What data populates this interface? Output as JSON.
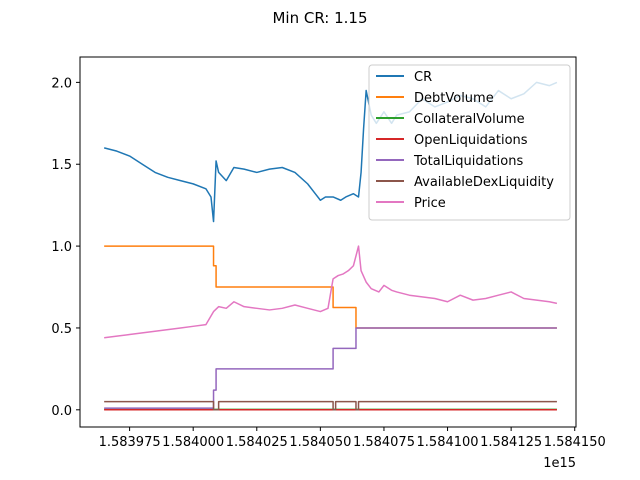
{
  "figure": {
    "background": "#ffffff"
  },
  "chart_data": {
    "type": "line",
    "title": "Min CR: 1.15",
    "xlabel": "",
    "ylabel": "",
    "x_offset_label": "1e15",
    "xlim": [
      1.5839555,
      1.5841505
    ],
    "ylim": [
      -0.105,
      2.155
    ],
    "x_ticks": [
      1.583975,
      1.584,
      1.584025,
      1.58405,
      1.584075,
      1.5841,
      1.584125,
      1.58415
    ],
    "x_tick_labels": [
      "1.583975",
      "1.584000",
      "1.584025",
      "1.584050",
      "1.584075",
      "1.584100",
      "1.584125",
      "1.584150"
    ],
    "y_ticks": [
      0.0,
      0.5,
      1.0,
      1.5,
      2.0
    ],
    "y_tick_labels": [
      "0.0",
      "0.5",
      "1.0",
      "1.5",
      "2.0"
    ],
    "grid": false,
    "legend_position": "upper right",
    "series": [
      {
        "name": "CR",
        "color": "#1f77b4",
        "x": [
          1.583965,
          1.58397,
          1.583975,
          1.58398,
          1.583985,
          1.58399,
          1.583995,
          1.584,
          1.584005,
          1.584007,
          1.584008,
          1.584009,
          1.58401,
          1.584013,
          1.584016,
          1.58402,
          1.584025,
          1.58403,
          1.584035,
          1.58404,
          1.584045,
          1.584048,
          1.58405,
          1.584052,
          1.584055,
          1.584058,
          1.58406,
          1.584063,
          1.584065,
          1.584066,
          1.584067,
          1.584068,
          1.58407,
          1.584072,
          1.584075,
          1.584078,
          1.58408,
          1.584085,
          1.58409,
          1.584095,
          1.5841,
          1.584105,
          1.58411,
          1.584115,
          1.58412,
          1.584125,
          1.58413,
          1.584135,
          1.58414,
          1.584143
        ],
        "y": [
          1.6,
          1.58,
          1.55,
          1.5,
          1.45,
          1.42,
          1.4,
          1.38,
          1.35,
          1.3,
          1.15,
          1.52,
          1.45,
          1.4,
          1.48,
          1.47,
          1.45,
          1.47,
          1.48,
          1.45,
          1.38,
          1.32,
          1.28,
          1.3,
          1.3,
          1.28,
          1.3,
          1.32,
          1.3,
          1.45,
          1.72,
          1.95,
          1.8,
          1.75,
          1.82,
          1.75,
          1.8,
          1.82,
          1.9,
          1.85,
          1.88,
          1.92,
          1.9,
          1.85,
          1.95,
          1.9,
          1.93,
          2.0,
          1.98,
          2.0
        ]
      },
      {
        "name": "DebtVolume",
        "color": "#ff7f0e",
        "x": [
          1.583965,
          1.584008,
          1.584008,
          1.584009,
          1.584009,
          1.584055,
          1.584055,
          1.584064,
          1.584064,
          1.584143
        ],
        "y": [
          1.0,
          1.0,
          0.88,
          0.88,
          0.75,
          0.75,
          0.625,
          0.625,
          0.5,
          0.5
        ]
      },
      {
        "name": "CollateralVolume",
        "color": "#2ca02c",
        "x": [
          1.583965,
          1.584143
        ],
        "y": [
          0.003,
          0.003
        ]
      },
      {
        "name": "OpenLiquidations",
        "color": "#d62728",
        "x": [
          1.583965,
          1.584143
        ],
        "y": [
          0.0,
          0.0
        ]
      },
      {
        "name": "TotalLiquidations",
        "color": "#9467bd",
        "x": [
          1.583965,
          1.584008,
          1.584008,
          1.584009,
          1.584009,
          1.584055,
          1.584055,
          1.584064,
          1.584064,
          1.584143
        ],
        "y": [
          0.01,
          0.01,
          0.12,
          0.12,
          0.25,
          0.25,
          0.375,
          0.375,
          0.5,
          0.5
        ]
      },
      {
        "name": "AvailableDexLiquidity",
        "color": "#8c564b",
        "x": [
          1.583965,
          1.584008,
          1.584008,
          1.58401,
          1.58401,
          1.584055,
          1.584055,
          1.584056,
          1.584056,
          1.584064,
          1.584064,
          1.584065,
          1.584065,
          1.584143
        ],
        "y": [
          0.05,
          0.05,
          0.0,
          0.0,
          0.05,
          0.05,
          0.0,
          0.0,
          0.05,
          0.05,
          0.0,
          0.0,
          0.05,
          0.05
        ]
      },
      {
        "name": "Price",
        "color": "#e377c2",
        "x": [
          1.583965,
          1.58397,
          1.583975,
          1.58398,
          1.583985,
          1.58399,
          1.583995,
          1.584,
          1.584005,
          1.584008,
          1.58401,
          1.584013,
          1.584016,
          1.58402,
          1.584025,
          1.58403,
          1.584035,
          1.58404,
          1.584045,
          1.58405,
          1.584053,
          1.584055,
          1.584057,
          1.584059,
          1.584061,
          1.584063,
          1.584065,
          1.584066,
          1.584068,
          1.58407,
          1.584073,
          1.584075,
          1.584078,
          1.58408,
          1.584085,
          1.58409,
          1.584095,
          1.5841,
          1.584105,
          1.58411,
          1.584115,
          1.58412,
          1.584125,
          1.58413,
          1.584135,
          1.58414,
          1.584143
        ],
        "y": [
          0.44,
          0.45,
          0.46,
          0.47,
          0.48,
          0.49,
          0.5,
          0.51,
          0.52,
          0.6,
          0.63,
          0.62,
          0.66,
          0.63,
          0.62,
          0.61,
          0.62,
          0.64,
          0.62,
          0.6,
          0.62,
          0.8,
          0.82,
          0.83,
          0.85,
          0.88,
          1.0,
          0.85,
          0.78,
          0.74,
          0.72,
          0.76,
          0.73,
          0.72,
          0.7,
          0.69,
          0.68,
          0.66,
          0.7,
          0.67,
          0.68,
          0.7,
          0.72,
          0.68,
          0.67,
          0.66,
          0.65
        ]
      }
    ]
  }
}
